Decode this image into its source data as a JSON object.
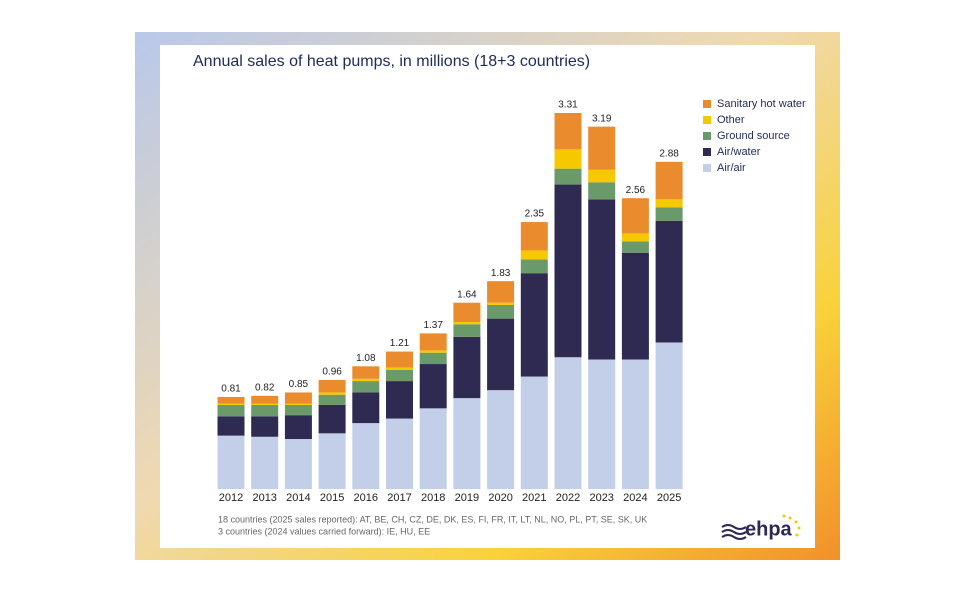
{
  "chart_data": {
    "type": "stacked_bar",
    "title": "Annual sales of heat pumps, in millions (18+3 countries)",
    "categories": [
      "2012",
      "2013",
      "2014",
      "2015",
      "2016",
      "2017",
      "2018",
      "2019",
      "2020",
      "2021",
      "2022",
      "2023",
      "2024",
      "2025"
    ],
    "series": [
      {
        "name": "Air/air",
        "color": "#c3cfe8",
        "values": [
          0.47,
          0.46,
          0.44,
          0.49,
          0.58,
          0.62,
          0.71,
          0.8,
          0.87,
          0.99,
          1.16,
          1.14,
          1.14,
          1.29
        ]
      },
      {
        "name": "Air/water",
        "color": "#2e2a52",
        "values": [
          0.17,
          0.18,
          0.21,
          0.25,
          0.27,
          0.33,
          0.39,
          0.54,
          0.63,
          0.91,
          1.52,
          1.41,
          0.94,
          1.07
        ]
      },
      {
        "name": "Ground source",
        "color": "#6b9a6a",
        "values": [
          0.1,
          0.1,
          0.09,
          0.09,
          0.1,
          0.1,
          0.1,
          0.11,
          0.12,
          0.12,
          0.14,
          0.15,
          0.1,
          0.12
        ]
      },
      {
        "name": "Other",
        "color": "#f5c800",
        "values": [
          0.01,
          0.01,
          0.01,
          0.02,
          0.02,
          0.02,
          0.02,
          0.02,
          0.02,
          0.08,
          0.17,
          0.11,
          0.07,
          0.07
        ]
      },
      {
        "name": "Sanitary hot water",
        "color": "#ea8c2e",
        "values": [
          0.06,
          0.07,
          0.1,
          0.11,
          0.11,
          0.14,
          0.15,
          0.17,
          0.19,
          0.25,
          0.32,
          0.38,
          0.31,
          0.33
        ]
      }
    ],
    "totals": [
      0.81,
      0.82,
      0.85,
      0.96,
      1.08,
      1.21,
      1.37,
      1.64,
      1.83,
      2.35,
      3.31,
      3.19,
      2.56,
      2.88
    ],
    "footnotes": [
      "18 countries (2025 sales reported): AT, BE, CH, CZ, DE, DK, ES, FI, FR, IT, LT, NL, NO, PL, PT, SE, SK, UK",
      "3 countries (2024 values carried forward): IE, HU, EE"
    ],
    "logo": "ehpa"
  }
}
